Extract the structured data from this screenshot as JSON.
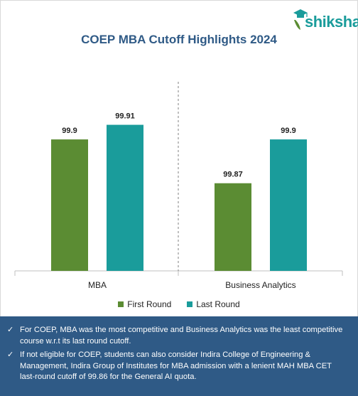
{
  "brand": {
    "logo_text": "shiksha",
    "icon": "graduation-cap-icon",
    "color": "#1a9c9b"
  },
  "chart_data": {
    "type": "bar",
    "title": "COEP MBA Cutoff Highlights 2024",
    "categories": [
      "MBA",
      "Business Analytics"
    ],
    "series": [
      {
        "name": "First Round",
        "values": [
          99.9,
          99.87
        ],
        "labels": [
          "99.9",
          "99.87"
        ],
        "color": "#5b8c33"
      },
      {
        "name": "Last Round",
        "values": [
          99.91,
          99.9
        ],
        "labels": [
          "99.91",
          "99.9"
        ],
        "color": "#1a9c9b"
      }
    ],
    "ylim": [
      99.81,
      99.92
    ],
    "grid": false,
    "legend": "bottom-center"
  },
  "notes": [
    "For COEP, MBA was the most competitive and Business Analytics was the least competitive course w.r.t its last round cutoff.",
    "If not eligible for COEP, students can also consider Indira College of Engineering & Management, Indira Group of Institutes for MBA admission with a lenient MAH MBA CET last-round cutoff of 99.86 for the General AI quota."
  ],
  "colors": {
    "notes_background": "#2f5a86",
    "title": "#2f5a86"
  }
}
